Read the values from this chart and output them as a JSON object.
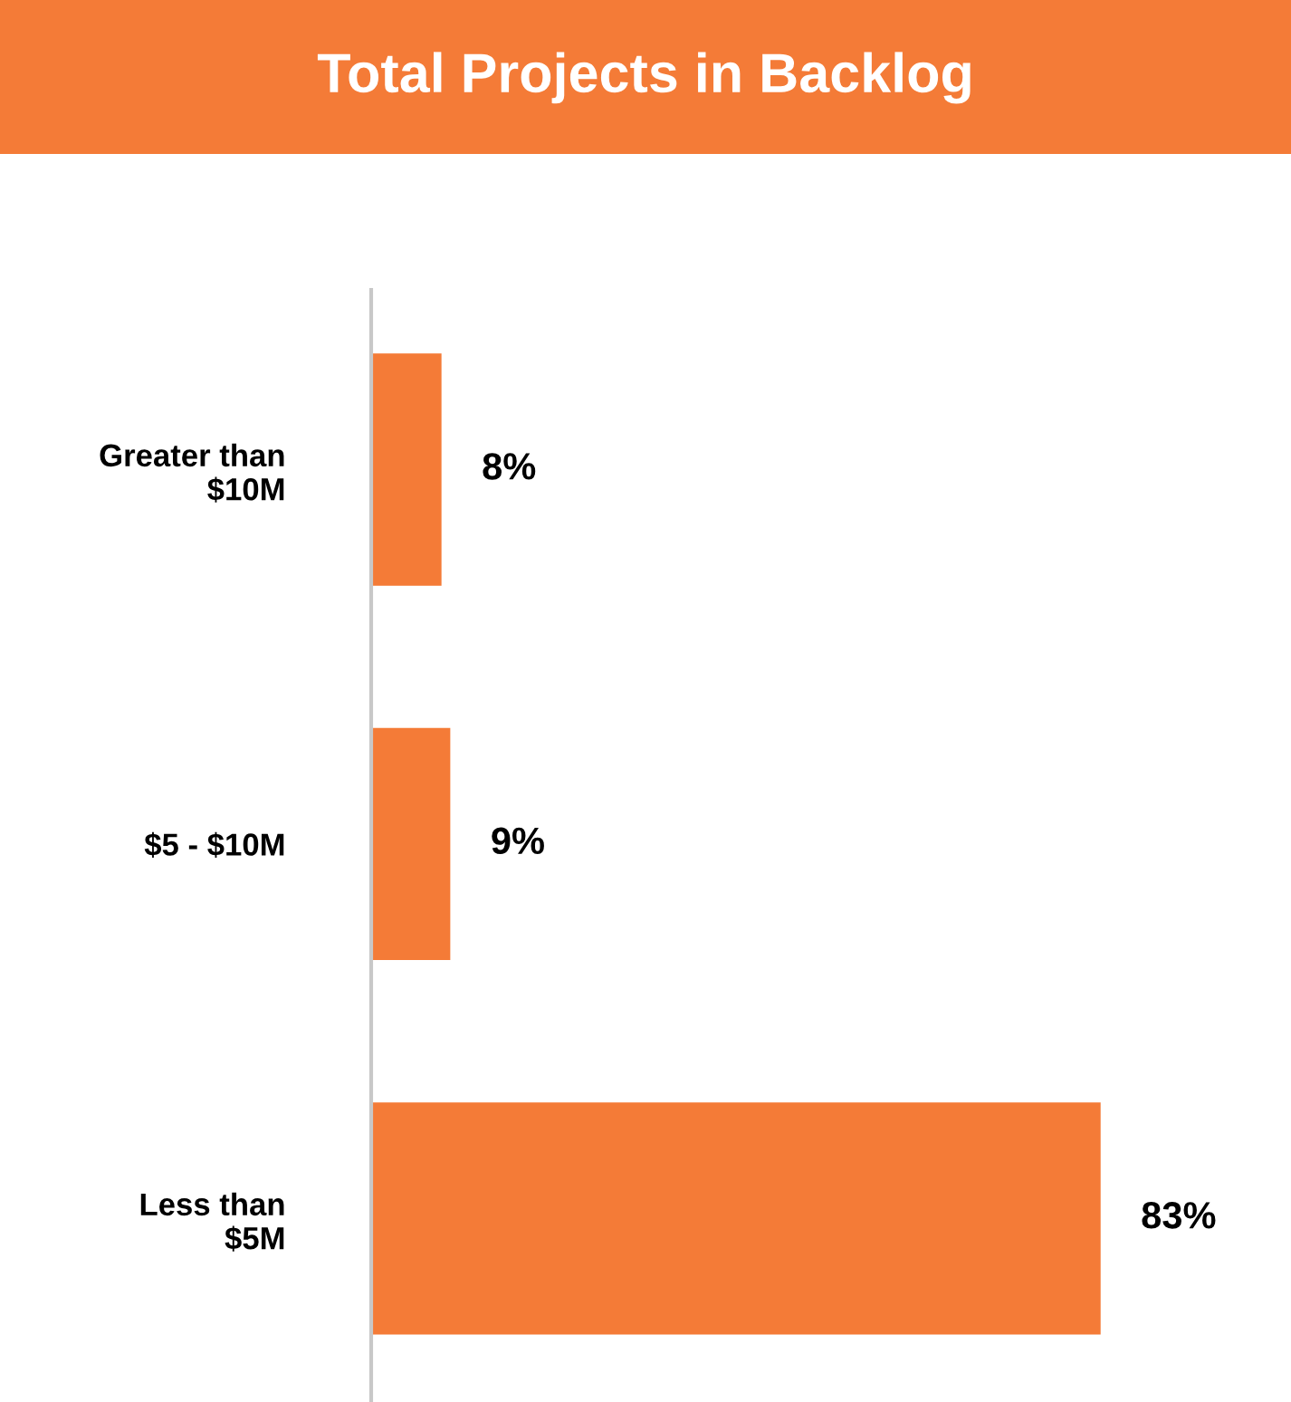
{
  "chart_data": {
    "type": "bar",
    "orientation": "horizontal",
    "title": "Total Projects in Backlog",
    "categories": [
      "Greater than\n$10M",
      "$5 - $10M",
      "Less than\n$5M"
    ],
    "values": [
      8,
      9,
      83
    ],
    "value_labels": [
      "8%",
      "9%",
      "83%"
    ],
    "color": "#f47b37",
    "grid": false,
    "legend": false
  }
}
